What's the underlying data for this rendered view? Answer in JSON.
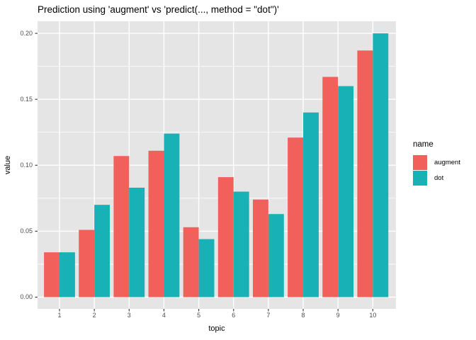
{
  "title": "Prediction using 'augment' vs 'predict(..., method = \"dot\")'",
  "chart_data": {
    "type": "bar",
    "grouped": "dodge",
    "title": "Prediction using 'augment' vs 'predict(..., method = \"dot\")'",
    "categories": [
      "1",
      "2",
      "3",
      "4",
      "5",
      "6",
      "7",
      "8",
      "9",
      "10"
    ],
    "series": [
      {
        "name": "augment",
        "color": "#F2605B",
        "values": [
          0.034,
          0.051,
          0.107,
          0.111,
          0.053,
          0.091,
          0.074,
          0.121,
          0.167,
          0.187
        ]
      },
      {
        "name": "dot",
        "color": "#18B1B5",
        "values": [
          0.034,
          0.07,
          0.083,
          0.124,
          0.044,
          0.08,
          0.063,
          0.14,
          0.16,
          0.2
        ]
      }
    ],
    "xlabel": "topic",
    "ylabel": "value",
    "ylim": [
      -0.009,
      0.209
    ],
    "y_major_ticks": [
      0.0,
      0.05,
      0.1,
      0.15,
      0.2
    ],
    "y_minor_ticks": [
      0.025,
      0.075,
      0.125,
      0.175
    ],
    "y_tick_labels": [
      "0.00",
      "0.05",
      "0.10",
      "0.15",
      "0.20"
    ],
    "legend_position": "right",
    "grid": "on",
    "panel_bg": "#E5E5E5",
    "grid_color": "#FFFFFF",
    "tick_color": "#333333",
    "tick_label_color": "#4D4D4D"
  },
  "legend": {
    "title": "name",
    "items": [
      {
        "label": "augment",
        "color": "#F2605B"
      },
      {
        "label": "dot",
        "color": "#18B1B5"
      }
    ]
  }
}
